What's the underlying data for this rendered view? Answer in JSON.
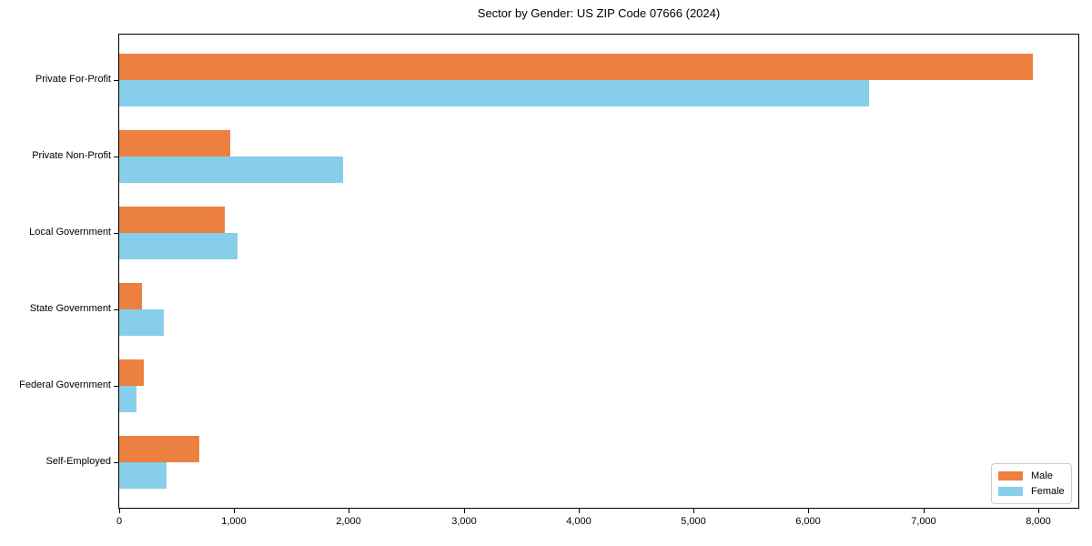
{
  "figure": {
    "title": "Sector by Gender: US ZIP Code 07666 (2024)"
  },
  "chart_data": {
    "type": "bar",
    "orientation": "horizontal",
    "title": "Sector by Gender: US ZIP Code 07666 (2024)",
    "xlabel": "",
    "ylabel": "",
    "categories": [
      "Private For-Profit",
      "Private Non-Profit",
      "Local Government",
      "State Government",
      "Federal Government",
      "Self-Employed"
    ],
    "series": [
      {
        "name": "Male",
        "color": "#ec8040",
        "values": [
          7950,
          970,
          920,
          200,
          210,
          700
        ]
      },
      {
        "name": "Female",
        "color": "#87ceeb",
        "values": [
          6530,
          1950,
          1030,
          390,
          150,
          410
        ]
      }
    ],
    "xlim": [
      0,
      8350
    ],
    "xticks": [
      0,
      1000,
      2000,
      3000,
      4000,
      5000,
      6000,
      7000,
      8000
    ],
    "xtick_labels": [
      "0",
      "1,000",
      "2,000",
      "3,000",
      "4,000",
      "5,000",
      "6,000",
      "7,000",
      "8,000"
    ],
    "grid": false,
    "legend": {
      "position": "lower right",
      "entries": [
        "Male",
        "Female"
      ]
    }
  }
}
